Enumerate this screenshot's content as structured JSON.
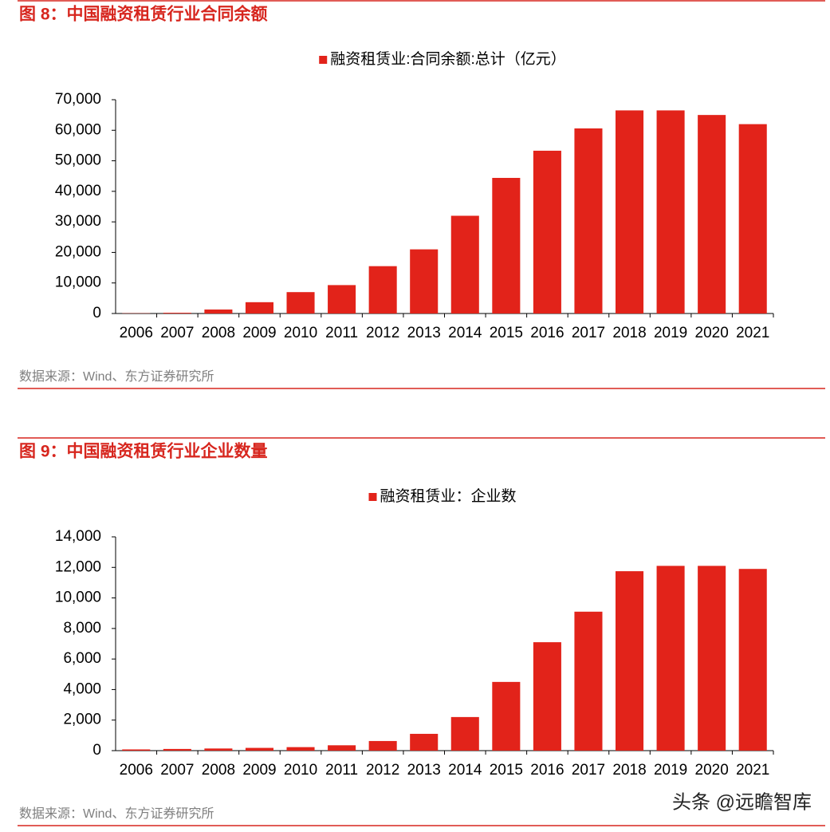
{
  "chart_data": [
    {
      "type": "bar",
      "figure_title": "图 8：中国融资租赁行业合同余额",
      "source": "数据来源：Wind、东方证券研究所",
      "categories": [
        "2006",
        "2007",
        "2008",
        "2009",
        "2010",
        "2011",
        "2012",
        "2013",
        "2014",
        "2015",
        "2016",
        "2017",
        "2018",
        "2019",
        "2020",
        "2021"
      ],
      "series": [
        {
          "name": "融资租赁业:合同余额:总计（亿元）",
          "color": "#e2231a",
          "values": [
            80,
            240,
            1300,
            3700,
            7000,
            9300,
            15500,
            21000,
            32000,
            44400,
            53300,
            60600,
            66500,
            66500,
            65000,
            62000
          ]
        }
      ],
      "ylim": [
        0,
        70000
      ],
      "yticks": [
        0,
        {
          "value": 10000,
          "label": "10,000"
        },
        {
          "value": 20000,
          "label": "20,000"
        },
        {
          "value": 30000,
          "label": "30,000"
        },
        {
          "value": 40000,
          "label": "40,000"
        },
        {
          "value": 50000,
          "label": "50,000"
        },
        {
          "value": 60000,
          "label": "60,000"
        },
        {
          "value": 70000,
          "label": "70,000"
        }
      ],
      "legend": "top"
    },
    {
      "type": "bar",
      "figure_title": "图 9：中国融资租赁行业企业数量",
      "source": "数据来源：Wind、东方证券研究所",
      "categories": [
        "2006",
        "2007",
        "2008",
        "2009",
        "2010",
        "2011",
        "2012",
        "2013",
        "2014",
        "2015",
        "2016",
        "2017",
        "2018",
        "2019",
        "2020",
        "2021"
      ],
      "series": [
        {
          "name": "融资租赁业：企业数",
          "color": "#e2231a",
          "values": [
            80,
            110,
            140,
            180,
            230,
            350,
            630,
            1100,
            2200,
            4500,
            7100,
            9100,
            11750,
            12100,
            12100,
            11900
          ]
        }
      ],
      "ylim": [
        0,
        14000
      ],
      "yticks": [
        0,
        {
          "value": 2000,
          "label": "2,000"
        },
        {
          "value": 4000,
          "label": "4,000"
        },
        {
          "value": 6000,
          "label": "6,000"
        },
        {
          "value": 8000,
          "label": "8,000"
        },
        {
          "value": 10000,
          "label": "10,000"
        },
        {
          "value": 12000,
          "label": "12,000"
        },
        {
          "value": 14000,
          "label": "14,000"
        }
      ],
      "legend": "top"
    }
  ],
  "watermark": "头条 @远瞻智库"
}
